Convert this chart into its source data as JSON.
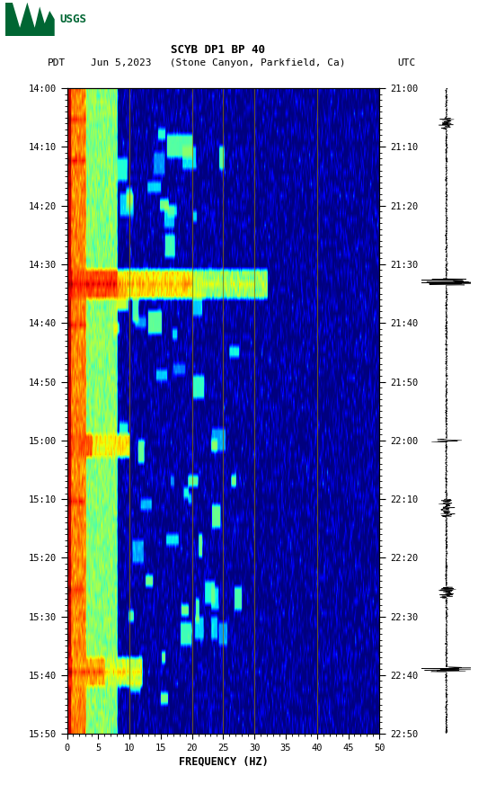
{
  "title_line1": "SCYB DP1 BP 40",
  "title_line2_pdt": "PDT   Jun 5,2023   (Stone Canyon, Parkfield, Ca)          UTC",
  "xlabel": "FREQUENCY (HZ)",
  "freq_min": 0,
  "freq_max": 50,
  "freq_ticks": [
    0,
    5,
    10,
    15,
    20,
    25,
    30,
    35,
    40,
    45,
    50
  ],
  "left_time_labels": [
    "14:00",
    "14:10",
    "14:20",
    "14:30",
    "14:40",
    "14:50",
    "15:00",
    "15:10",
    "15:20",
    "15:30",
    "15:40",
    "15:50"
  ],
  "right_time_labels": [
    "21:00",
    "21:10",
    "21:20",
    "21:30",
    "21:40",
    "21:50",
    "22:00",
    "22:10",
    "22:20",
    "22:30",
    "22:40",
    "22:50"
  ],
  "vertical_lines_hz": [
    10,
    20,
    25,
    30,
    40
  ],
  "background_color": "#ffffff",
  "usgs_green": "#006633",
  "vline_color": "#8B7000",
  "n_time": 110,
  "n_freq": 500,
  "seed": 12345
}
